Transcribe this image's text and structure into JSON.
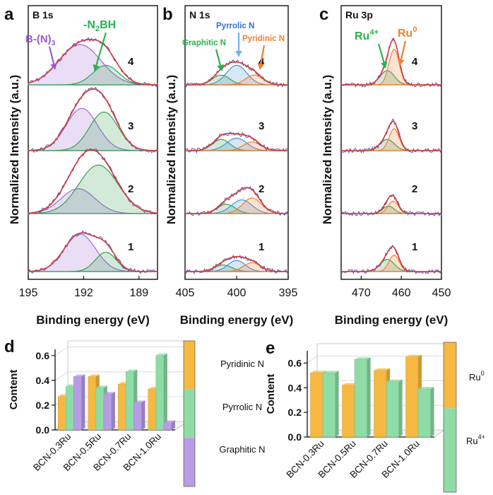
{
  "chart_data": [
    {
      "panel": "a",
      "type": "line",
      "title": "B 1s",
      "xlabel": "Binding energy (eV)",
      "ylabel": "Normalized Intensity (a.u.)",
      "xlim": [
        195,
        188
      ],
      "xticks": [
        195,
        192,
        189
      ],
      "stack_labels": [
        "4",
        "3",
        "2",
        "1"
      ],
      "component_labels": [
        {
          "text": "B-(N)",
          "sub": "3",
          "color": "#9b59d0"
        },
        {
          "text": "-N",
          "sub": "2",
          "rest": "BH",
          "color": "#2bb24c"
        }
      ],
      "peaks": [
        {
          "label": "4",
          "components": [
            {
              "center": 192.2,
              "height": 0.62,
              "width": 1.6,
              "color": "#9b6bd6"
            },
            {
              "center": 190.8,
              "height": 0.3,
              "width": 1.0,
              "color": "#3aa050"
            }
          ]
        },
        {
          "label": "3",
          "components": [
            {
              "center": 192.1,
              "height": 0.68,
              "width": 1.2,
              "color": "#9b6bd6"
            },
            {
              "center": 190.9,
              "height": 0.62,
              "width": 1.1,
              "color": "#3aa050"
            }
          ]
        },
        {
          "label": "2",
          "components": [
            {
              "center": 192.3,
              "height": 0.4,
              "width": 1.3,
              "color": "#9b6bd6"
            },
            {
              "center": 191.2,
              "height": 0.78,
              "width": 1.5,
              "color": "#3aa050"
            }
          ]
        },
        {
          "label": "1",
          "components": [
            {
              "center": 192.2,
              "height": 0.68,
              "width": 1.2,
              "color": "#9b6bd6"
            },
            {
              "center": 190.8,
              "height": 0.35,
              "width": 0.8,
              "color": "#3aa050"
            }
          ]
        }
      ]
    },
    {
      "panel": "b",
      "type": "line",
      "title": "N 1s",
      "xlabel": "Binding energy (eV)",
      "ylabel": "Normalized Intensity (a.u.)",
      "xlim": [
        405,
        395
      ],
      "xticks": [
        405,
        400,
        395
      ],
      "stack_labels": [
        "4",
        "3",
        "2",
        "1"
      ],
      "component_labels": [
        {
          "text": "Graphitic N",
          "color": "#2bb24c"
        },
        {
          "text": "Pyrrolic N",
          "color": "#2f6fd0"
        },
        {
          "text": "Pyridinic N",
          "color": "#f08030"
        }
      ],
      "peaks": [
        {
          "label": "4",
          "components": [
            {
              "center": 401.5,
              "height": 0.15,
              "width": 1.2,
              "color": "#3aa050"
            },
            {
              "center": 400.0,
              "height": 0.3,
              "width": 1.4,
              "color": "#4a90d9"
            },
            {
              "center": 398.3,
              "height": 0.15,
              "width": 1.2,
              "color": "#f08030"
            }
          ]
        },
        {
          "label": "3",
          "components": [
            {
              "center": 401.5,
              "height": 0.18,
              "width": 1.2,
              "color": "#3aa050"
            },
            {
              "center": 400.0,
              "height": 0.2,
              "width": 1.4,
              "color": "#4a90d9"
            },
            {
              "center": 398.5,
              "height": 0.14,
              "width": 1.2,
              "color": "#f08030"
            }
          ]
        },
        {
          "label": "2",
          "components": [
            {
              "center": 401.0,
              "height": 0.15,
              "width": 1.2,
              "color": "#3aa050"
            },
            {
              "center": 399.5,
              "height": 0.22,
              "width": 1.4,
              "color": "#4a90d9"
            },
            {
              "center": 398.5,
              "height": 0.25,
              "width": 1.3,
              "color": "#f08030"
            }
          ]
        },
        {
          "label": "1",
          "components": [
            {
              "center": 401.3,
              "height": 0.12,
              "width": 1.2,
              "color": "#3aa050"
            },
            {
              "center": 400.0,
              "height": 0.2,
              "width": 1.2,
              "color": "#4a90d9"
            },
            {
              "center": 398.5,
              "height": 0.16,
              "width": 1.2,
              "color": "#f08030"
            }
          ]
        }
      ]
    },
    {
      "panel": "c",
      "type": "line",
      "title": "Ru 3p",
      "xlabel": "Binding energy (eV)",
      "ylabel": "Normalized Intensity (a.u.)",
      "xlim": [
        475,
        450
      ],
      "xticks": [
        470,
        460,
        450
      ],
      "stack_labels": [
        "4",
        "3",
        "2",
        "1"
      ],
      "component_labels": [
        {
          "text": "Ru",
          "sup": "4+",
          "color": "#2bb24c"
        },
        {
          "text": "Ru",
          "sup": "0",
          "color": "#f08030"
        }
      ],
      "peaks": [
        {
          "label": "4",
          "components": [
            {
              "center": 463.5,
              "height": 0.22,
              "width": 2.5,
              "color": "#3aa050"
            },
            {
              "center": 461.8,
              "height": 0.55,
              "width": 1.8,
              "color": "#f08030"
            }
          ]
        },
        {
          "label": "3",
          "components": [
            {
              "center": 463.5,
              "height": 0.18,
              "width": 2.5,
              "color": "#3aa050"
            },
            {
              "center": 461.8,
              "height": 0.35,
              "width": 1.8,
              "color": "#f08030"
            }
          ]
        },
        {
          "label": "2",
          "components": [
            {
              "center": 463.2,
              "height": 0.12,
              "width": 2.0,
              "color": "#3aa050"
            },
            {
              "center": 462.0,
              "height": 0.2,
              "width": 1.8,
              "color": "#f08030"
            }
          ]
        },
        {
          "label": "1",
          "components": [
            {
              "center": 463.5,
              "height": 0.22,
              "width": 2.5,
              "color": "#3aa050"
            },
            {
              "center": 461.8,
              "height": 0.3,
              "width": 1.8,
              "color": "#f08030"
            }
          ]
        }
      ]
    },
    {
      "panel": "d",
      "type": "bar",
      "ylabel": "Content",
      "categories": [
        "BCN-0.3Ru",
        "BCN-0.5Ru",
        "BCN-0.7Ru",
        "BCN-1.0Ru"
      ],
      "ylim": [
        0.0,
        0.65
      ],
      "yticks": [
        0.0,
        0.2,
        0.4,
        0.6
      ],
      "yticklabels": [
        "0.0",
        "0.2",
        "0.4",
        "0.6"
      ],
      "series": [
        {
          "name": "Pyridinic N",
          "color": "#f5b942",
          "values": [
            0.27,
            0.43,
            0.37,
            0.33
          ]
        },
        {
          "name": "Pyrrolic N",
          "color": "#8fdca6",
          "values": [
            0.35,
            0.34,
            0.47,
            0.6
          ]
        },
        {
          "name": "Graphitic N",
          "color": "#b79ce6",
          "values": [
            0.43,
            0.29,
            0.22,
            0.06
          ]
        }
      ],
      "legend_labels": [
        "Pyridinic N",
        "Pyrrolic N",
        "Graphitic N"
      ]
    },
    {
      "panel": "e",
      "type": "bar",
      "ylabel": "Content",
      "categories": [
        "BCN-0.3Ru",
        "BCN-0.5Ru",
        "BCN-0.7Ru",
        "BCN-1.0Ru"
      ],
      "ylim": [
        0.0,
        0.7
      ],
      "yticks": [
        0.0,
        0.2,
        0.4,
        0.6
      ],
      "yticklabels": [
        "0.0",
        "0.2",
        "0.4",
        "0.6"
      ],
      "series": [
        {
          "name": "Ru0",
          "color": "#f5b942",
          "values": [
            0.52,
            0.42,
            0.54,
            0.65
          ]
        },
        {
          "name": "Ru4+",
          "color": "#8fdca6",
          "values": [
            0.52,
            0.63,
            0.45,
            0.39
          ]
        }
      ],
      "legend_labels": [
        {
          "text": "Ru",
          "sup": "0"
        },
        {
          "text": "Ru",
          "sup": "4+"
        }
      ]
    }
  ],
  "panel_letters": [
    "a",
    "b",
    "c",
    "d",
    "e"
  ],
  "colors": {
    "total_fit": "#d23b3b",
    "raw_data": "#6b4fa8",
    "background": "#4a6fa8"
  }
}
